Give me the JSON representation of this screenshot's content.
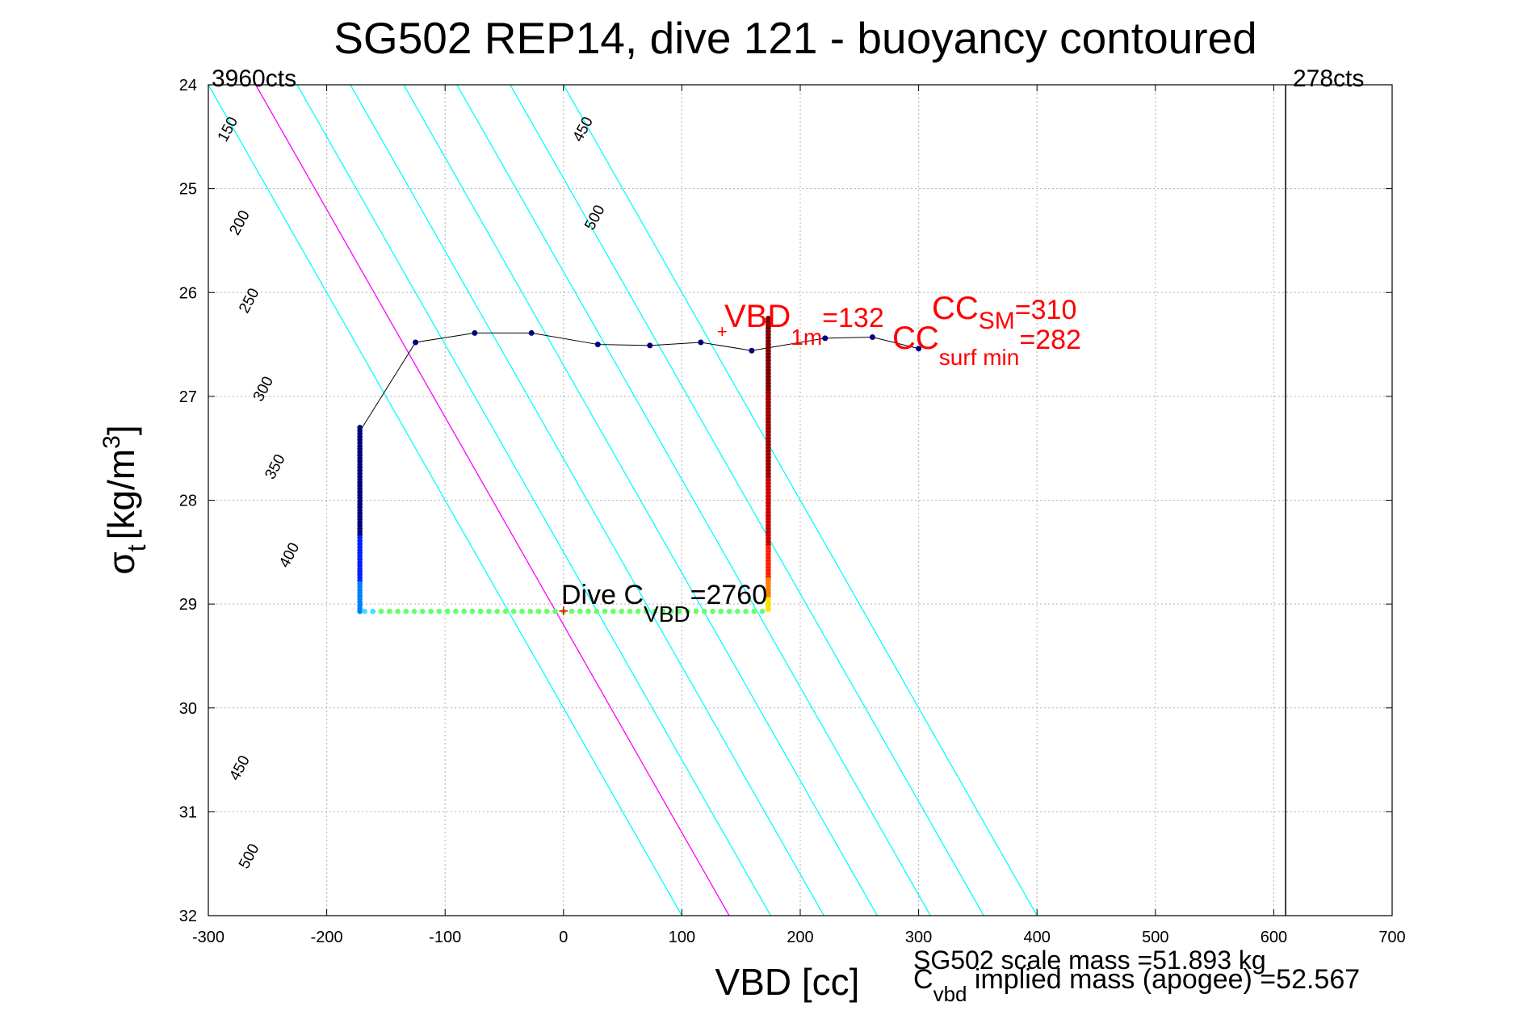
{
  "chart_data": {
    "type": "scatter",
    "title": "SG502 REP14, dive 121 - buoyancy contoured",
    "xlabel": "VBD [cc]",
    "ylabel_symbol": "σ",
    "ylabel_sub": "t",
    "ylabel_units": "[kg/m",
    "ylabel_sup": "3",
    "ylabel_close": "]",
    "xlim": [
      -300,
      700
    ],
    "ylim": [
      24,
      32
    ],
    "y_reversed": true,
    "grid": true,
    "xticks": [
      "-300",
      "-200",
      "-100",
      "0",
      "100",
      "200",
      "300",
      "400",
      "500",
      "600",
      "700"
    ],
    "yticks": [
      "24",
      "25",
      "26",
      "27",
      "28",
      "29",
      "30",
      "31",
      "32"
    ],
    "vertical_line_x": 610,
    "min_counts_label": "3960cts",
    "max_counts_label": "278cts",
    "contours": [
      {
        "level": 150,
        "label": "150",
        "x_at_y24": -300,
        "color": "#00ffff"
      },
      {
        "level": 200,
        "label": "200",
        "x_at_y24": -260,
        "color": "#ff00ff"
      },
      {
        "level": 250,
        "label": "250",
        "x_at_y24": -225,
        "color": "#00ffff"
      },
      {
        "level": 300,
        "label": "300",
        "x_at_y24": -180,
        "color": "#00ffff"
      },
      {
        "level": 350,
        "label": "350",
        "x_at_y24": -135,
        "color": "#00ffff"
      },
      {
        "level": 400,
        "label": "400",
        "x_at_y24": -90,
        "color": "#00ffff"
      },
      {
        "level": 450,
        "label": "450",
        "x_at_y24": -45,
        "color": "#00ffff"
      },
      {
        "level": 500,
        "label": "500",
        "x_at_y24": 0,
        "color": "#00ffff"
      }
    ],
    "contour_slope": 50,
    "climb_profile": {
      "x": [
        -170,
        -125,
        -75,
        -27,
        29,
        73,
        116,
        159,
        221,
        261,
        300
      ],
      "y": [
        27.3,
        26.48,
        26.39,
        26.39,
        26.5,
        26.51,
        26.48,
        26.56,
        26.44,
        26.43,
        26.54
      ],
      "color": "#000080"
    },
    "vertical_descent": {
      "x": -172,
      "y_from": 27.3,
      "y_to": 29.07
    },
    "bottom_track": {
      "x_from": -168,
      "x_to": 173,
      "y": 29.07,
      "color": "#66ff66"
    },
    "apogee_column": {
      "x": 173,
      "y_from": 26.25,
      "y_to": 29.05
    },
    "markers": [
      {
        "x": 0,
        "y": 29.07,
        "symbol": "+"
      },
      {
        "x": 134,
        "y": 26.38,
        "symbol": "+"
      }
    ],
    "annotations": {
      "dive_cvbd": {
        "main": "Dive C",
        "sub": "VBD",
        "value": "=2760"
      },
      "vbd_1m": {
        "main": "VBD",
        "sub": "1m",
        "value": "=132"
      },
      "cc_sm": {
        "main": "CC",
        "sub": "SM",
        "value": "=310"
      },
      "cc_surf": {
        "main": "CC",
        "sub": "surf min",
        "value": "=282"
      }
    },
    "footer": {
      "scale_mass": "SG502 scale mass =51.893 kg",
      "implied_main": "C",
      "implied_sub": "vbd",
      "implied_rest": " implied mass (apogee) =52.567"
    }
  }
}
